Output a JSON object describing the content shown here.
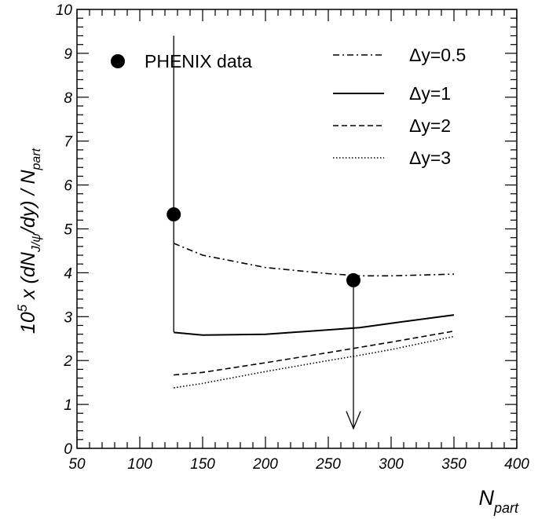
{
  "chart_data": {
    "type": "line",
    "title": "",
    "xlabel": {
      "main": "N",
      "sub": "part"
    },
    "ylabel": {
      "prefix": "10",
      "prefix_sup": "5",
      "body1": " x (dN",
      "body1_sub": "J/ψ",
      "body2": "/dy) / N",
      "body2_sub": "part"
    },
    "xlim": [
      50,
      400
    ],
    "ylim": [
      0,
      10
    ],
    "x_ticks": [
      "50",
      "100",
      "150",
      "200",
      "250",
      "300",
      "350",
      "400"
    ],
    "y_ticks": [
      "0",
      "1",
      "2",
      "3",
      "4",
      "5",
      "6",
      "7",
      "8",
      "9",
      "10"
    ],
    "series": [
      {
        "name": "Δy=0.5",
        "style": "dashdot",
        "x": [
          127,
          150,
          200,
          250,
          275,
          300,
          350
        ],
        "y": [
          4.67,
          4.4,
          4.12,
          3.98,
          3.93,
          3.93,
          3.97
        ]
      },
      {
        "name": "Δy=1",
        "style": "solid",
        "x": [
          127,
          150,
          200,
          250,
          275,
          300,
          350
        ],
        "y": [
          2.64,
          2.58,
          2.6,
          2.7,
          2.75,
          2.85,
          3.04
        ]
      },
      {
        "name": "Δy=2",
        "style": "dashed",
        "x": [
          127,
          150,
          200,
          250,
          275,
          300,
          350
        ],
        "y": [
          1.67,
          1.73,
          1.95,
          2.18,
          2.3,
          2.42,
          2.67
        ]
      },
      {
        "name": "Δy=3",
        "style": "dotted",
        "x": [
          127,
          150,
          200,
          250,
          275,
          300,
          350
        ],
        "y": [
          1.38,
          1.48,
          1.75,
          2.0,
          2.12,
          2.25,
          2.55
        ]
      }
    ],
    "data_points": {
      "name": "PHENIX data",
      "points": [
        {
          "x": 127,
          "y": 5.33,
          "err_low": 2.65,
          "err_high": 9.4,
          "upper_limit": false
        },
        {
          "x": 270,
          "y": 3.83,
          "err_low": 0.45,
          "err_high": 3.83,
          "upper_limit": true
        }
      ]
    },
    "legend": {
      "placement": "top"
    },
    "grid": false
  }
}
